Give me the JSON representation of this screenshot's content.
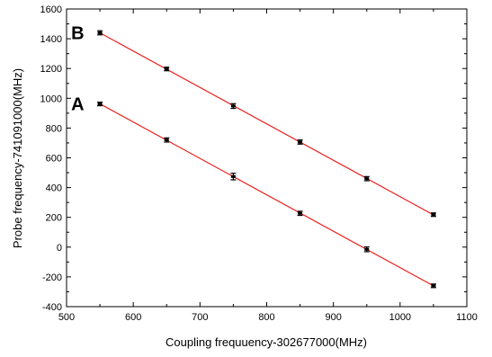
{
  "chart_data": {
    "type": "scatter",
    "xlabel": "Coupling frequuency-302677000(MHz)",
    "ylabel": "Probe frequency-741091000(MHz)",
    "xlim": [
      500,
      1100
    ],
    "ylim": [
      -400,
      1600
    ],
    "xticks": [
      500,
      600,
      700,
      800,
      900,
      1000,
      1100
    ],
    "yticks": [
      -400,
      -200,
      0,
      200,
      400,
      600,
      800,
      1000,
      1200,
      1400,
      1600
    ],
    "grid": false,
    "point_color": "#000000",
    "line_color": "#e8201c",
    "series": [
      {
        "name": "B",
        "x": [
          550,
          650,
          750,
          850,
          950,
          1050
        ],
        "y": [
          1440,
          1197,
          948,
          706,
          460,
          218
        ],
        "err": [
          14,
          12,
          16,
          14,
          14,
          12
        ]
      },
      {
        "name": "A",
        "x": [
          550,
          650,
          750,
          850,
          950,
          1050
        ],
        "y": [
          962,
          720,
          474,
          227,
          -15,
          -260
        ],
        "err": [
          12,
          14,
          22,
          14,
          16,
          12
        ]
      }
    ]
  }
}
